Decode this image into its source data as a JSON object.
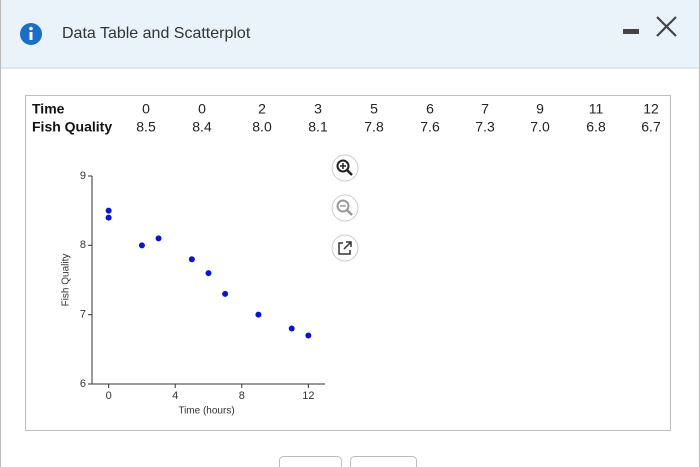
{
  "header": {
    "title": "Data Table and Scatterplot"
  },
  "table": {
    "row_labels": [
      "Time",
      "Fish Quality"
    ]
  },
  "chart_data": {
    "type": "scatter",
    "x_label": "Time (hours)",
    "y_label": "Fish Quality",
    "x": [
      0,
      0,
      2,
      3,
      5,
      6,
      7,
      9,
      11,
      12
    ],
    "values": [
      8.5,
      8.4,
      8.0,
      8.1,
      7.8,
      7.6,
      7.3,
      7.0,
      6.8,
      6.7
    ],
    "value_labels": [
      "8.5",
      "8.4",
      "8.0",
      "8.1",
      "7.8",
      "7.6",
      "7.3",
      "7.0",
      "6.8",
      "6.7"
    ],
    "color": "#0a14d0",
    "xlim": [
      -1,
      13
    ],
    "xticks": [
      0,
      4,
      8,
      12
    ],
    "ylim": [
      6,
      9
    ],
    "yticks": [
      6,
      7,
      8,
      9
    ]
  }
}
